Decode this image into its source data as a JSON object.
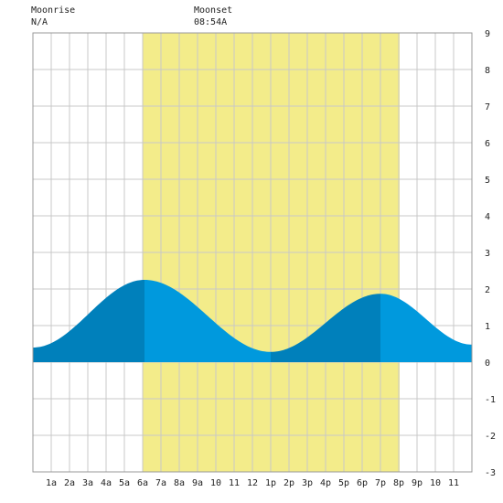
{
  "moon": {
    "moonrise_label": "Moonrise",
    "moonrise_value": "N/A",
    "moonset_label": "Moonset",
    "moonset_value": "08:54A"
  },
  "colors": {
    "background": "#ffffff",
    "daylight": "#f3ec8a",
    "grid": "#c8c8c8",
    "tide_dark": "#0080bb",
    "tide_light": "#0099dd",
    "text": "#222222"
  },
  "chart_data": {
    "type": "area",
    "title": "",
    "xlabel": "",
    "ylabel": "",
    "xlim": [
      0,
      24
    ],
    "ylim": [
      -3,
      9
    ],
    "yticks": [
      -3,
      -2,
      -1,
      0,
      1,
      2,
      3,
      4,
      5,
      6,
      7,
      8,
      9
    ],
    "xtick_labels": [
      "1a",
      "2a",
      "3a",
      "4a",
      "5a",
      "6a",
      "7a",
      "8a",
      "9a",
      "10",
      "11",
      "12",
      "1p",
      "2p",
      "3p",
      "4p",
      "5p",
      "6p",
      "7p",
      "8p",
      "9p",
      "10",
      "11"
    ],
    "daylight_hours": [
      6.0,
      20.05
    ],
    "tide_extrema": [
      {
        "hour": 0.0,
        "height": 0.4,
        "kind": "start"
      },
      {
        "hour": 6.1,
        "height": 2.25,
        "kind": "high"
      },
      {
        "hour": 13.0,
        "height": 0.28,
        "kind": "low"
      },
      {
        "hour": 19.0,
        "height": 1.87,
        "kind": "high"
      },
      {
        "hour": 24.0,
        "height": 0.48,
        "kind": "end"
      }
    ]
  }
}
